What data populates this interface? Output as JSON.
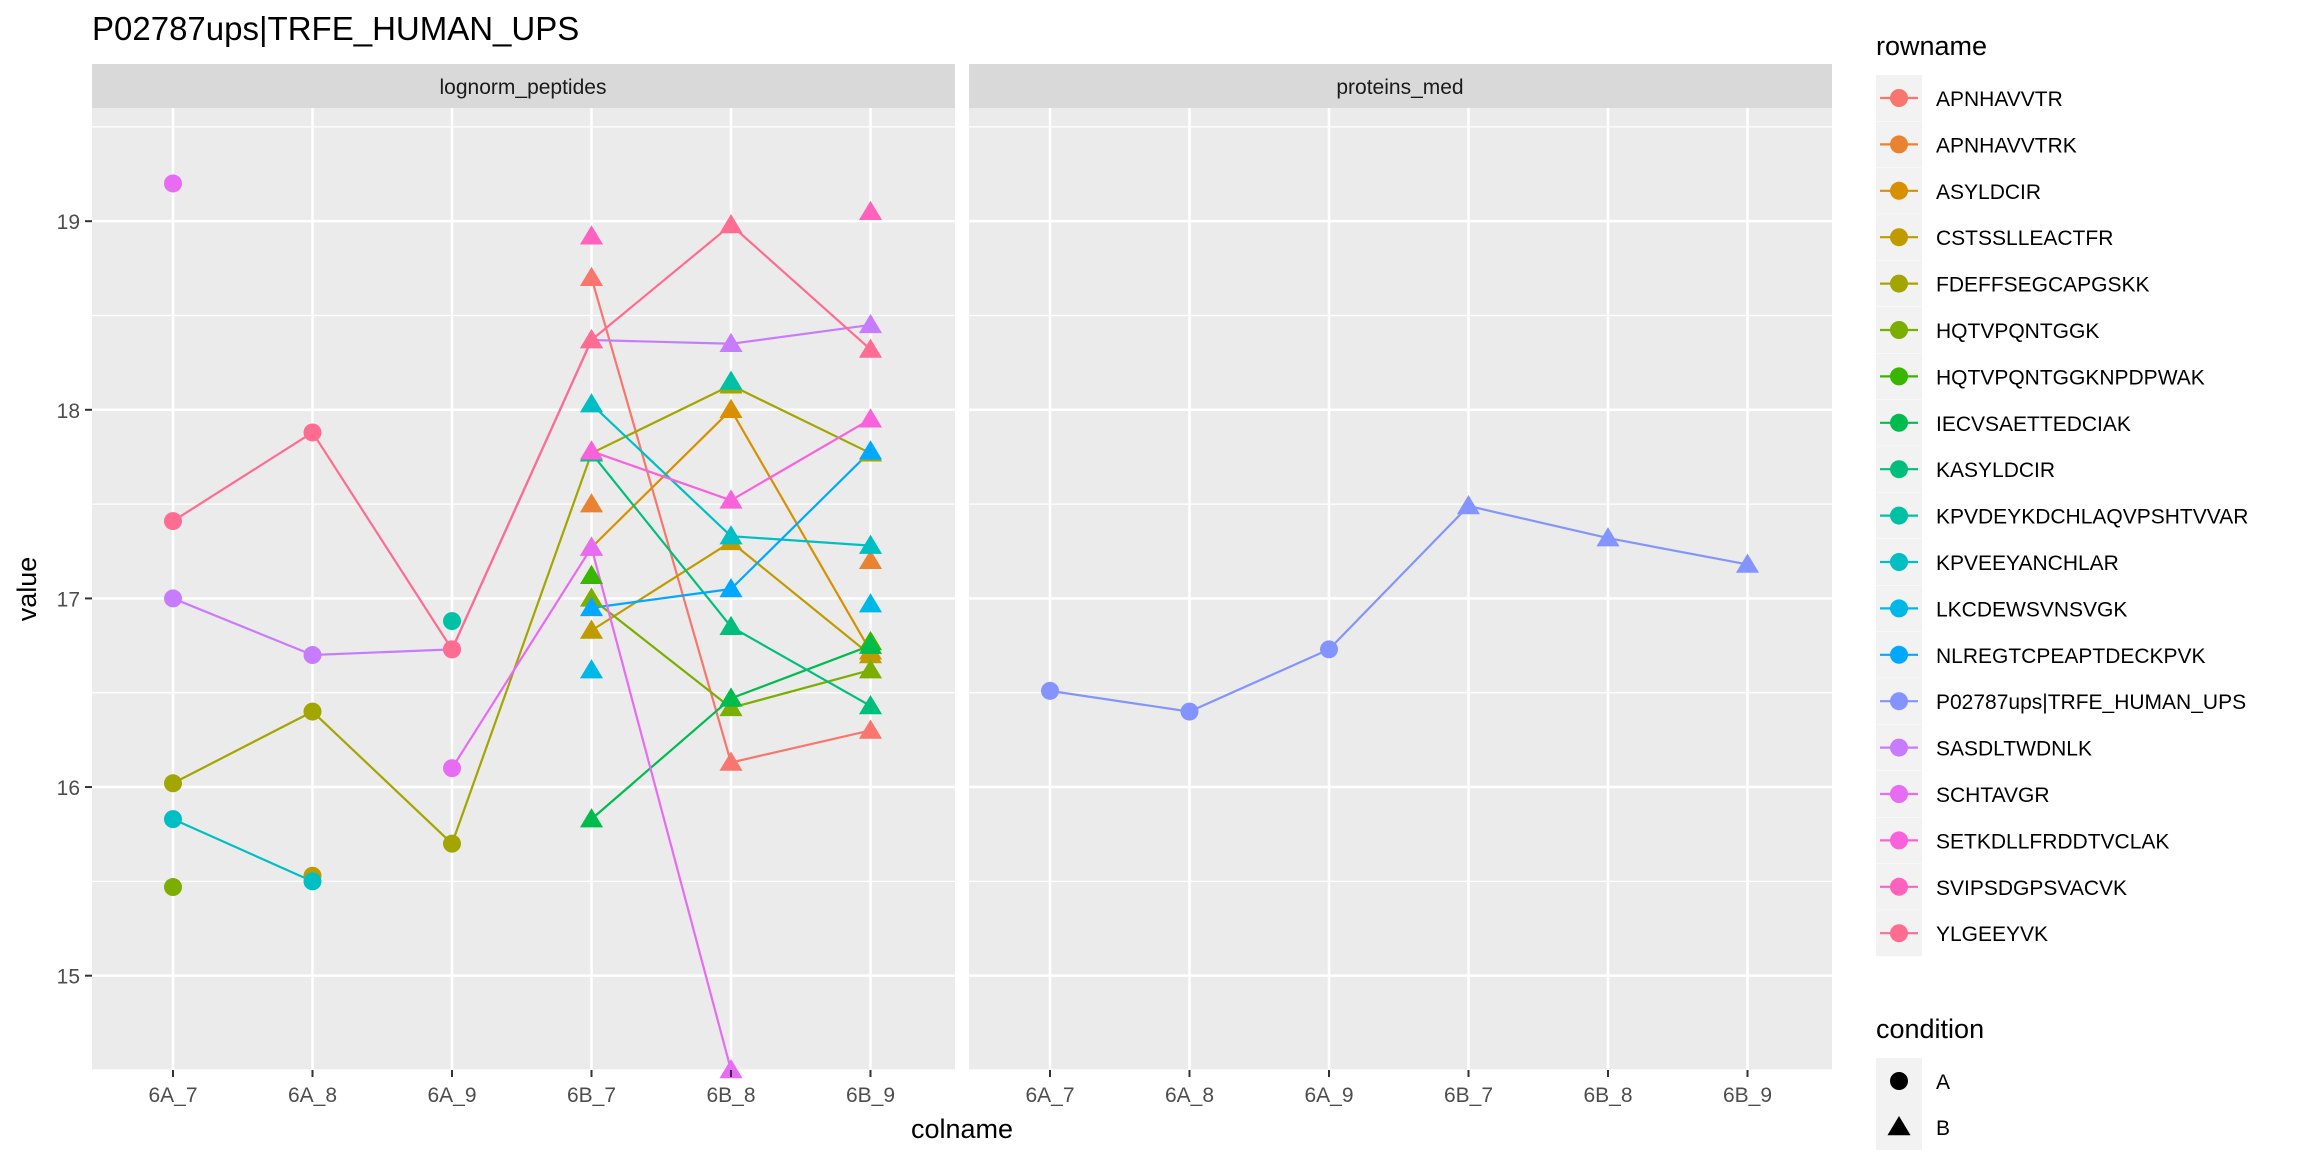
{
  "chart_data": {
    "type": "line",
    "title": "P02787ups|TRFE_HUMAN_UPS",
    "xlabel": "colname",
    "ylabel": "value",
    "categories": [
      "6A_7",
      "6A_8",
      "6A_9",
      "6B_7",
      "6B_8",
      "6B_9"
    ],
    "ylim": [
      14.5,
      19.6
    ],
    "yticks": [
      15,
      16,
      17,
      18,
      19
    ],
    "grid": true,
    "legend_placement": "right",
    "panels": [
      "lognorm_peptides",
      "proteins_med"
    ],
    "condition_by_category": [
      "A",
      "A",
      "A",
      "B",
      "B",
      "B"
    ],
    "legend_rowname_title": "rowname",
    "legend_condition_title": "condition",
    "conditions": [
      {
        "label": "A",
        "shape": "circle"
      },
      {
        "label": "B",
        "shape": "triangle"
      }
    ],
    "series": [
      {
        "name": "APNHAVVTR",
        "color": "#F8766D",
        "panel": "lognorm_peptides",
        "values": [
          null,
          null,
          null,
          18.7,
          16.13,
          16.3
        ]
      },
      {
        "name": "APNHAVVTRK",
        "color": "#EA8331",
        "panel": "lognorm_peptides",
        "values": [
          null,
          null,
          null,
          17.5,
          null,
          17.2
        ]
      },
      {
        "name": "ASYLDCIR",
        "color": "#D89000",
        "panel": "lognorm_peptides",
        "values": [
          null,
          null,
          null,
          17.27,
          18.0,
          16.72
        ]
      },
      {
        "name": "CSTSSLLEACTFR",
        "color": "#C09B00",
        "panel": "lognorm_peptides",
        "values": [
          null,
          15.53,
          null,
          16.83,
          17.3,
          16.7
        ]
      },
      {
        "name": "FDEFFSEGCAPGSKK",
        "color": "#A3A500",
        "panel": "lognorm_peptides",
        "values": [
          16.02,
          16.4,
          15.7,
          17.77,
          18.13,
          17.77
        ]
      },
      {
        "name": "HQTVPQNTGGK",
        "color": "#7CAE00",
        "panel": "lognorm_peptides",
        "values": [
          15.47,
          null,
          null,
          17.0,
          16.42,
          16.62
        ]
      },
      {
        "name": "HQTVPQNTGGKNPDPWAK",
        "color": "#39B600",
        "panel": "lognorm_peptides",
        "values": [
          null,
          null,
          null,
          17.12,
          null,
          16.77
        ]
      },
      {
        "name": "IECVSAETTEDCIAK",
        "color": "#00BB4E",
        "panel": "lognorm_peptides",
        "values": [
          null,
          null,
          null,
          15.83,
          16.47,
          16.75
        ]
      },
      {
        "name": "KASYLDCIR",
        "color": "#00BF7D",
        "panel": "lognorm_peptides",
        "values": [
          null,
          null,
          null,
          17.77,
          16.85,
          16.43
        ]
      },
      {
        "name": "KPVDEYKDCHLAQVPSHTVVAR",
        "color": "#00C1A3",
        "panel": "lognorm_peptides",
        "values": [
          null,
          null,
          16.88,
          null,
          18.15,
          null
        ]
      },
      {
        "name": "KPVEEYANCHLAR",
        "color": "#00BFC4",
        "panel": "lognorm_peptides",
        "values": [
          15.83,
          15.5,
          null,
          18.03,
          17.33,
          17.28
        ]
      },
      {
        "name": "LKCDEWSVNSVGK",
        "color": "#00B8E7",
        "panel": "lognorm_peptides",
        "values": [
          null,
          null,
          null,
          16.62,
          null,
          16.97
        ]
      },
      {
        "name": "NLREGTCPEAPTDECKPVK",
        "color": "#00A9FF",
        "panel": "lognorm_peptides",
        "values": [
          null,
          null,
          null,
          16.95,
          17.05,
          17.78
        ]
      },
      {
        "name": "P02787ups|TRFE_HUMAN_UPS",
        "color": "#8494FF",
        "panel": "proteins_med",
        "values": [
          16.51,
          16.4,
          16.73,
          17.49,
          17.32,
          17.18
        ]
      },
      {
        "name": "SASDLTWDNLK",
        "color": "#C77CFF",
        "panel": "lognorm_peptides",
        "values": [
          17.0,
          16.7,
          16.73,
          18.37,
          18.35,
          18.45
        ]
      },
      {
        "name": "SCHTAVGR",
        "color": "#E76BF3",
        "panel": "lognorm_peptides",
        "values": [
          19.2,
          null,
          16.1,
          17.27,
          14.5,
          null
        ]
      },
      {
        "name": "SETKDLLFRDDTVCLAK",
        "color": "#FA62DB",
        "panel": "lognorm_peptides",
        "values": [
          null,
          null,
          null,
          17.78,
          17.52,
          17.95
        ]
      },
      {
        "name": "SVIPSDGPSVACVK",
        "color": "#FF62BC",
        "panel": "lognorm_peptides",
        "values": [
          null,
          null,
          null,
          18.92,
          null,
          19.05
        ]
      },
      {
        "name": "YLGEEYVK",
        "color": "#FF6C91",
        "panel": "lognorm_peptides",
        "values": [
          17.41,
          17.88,
          16.73,
          18.37,
          18.98,
          18.32
        ]
      }
    ]
  }
}
